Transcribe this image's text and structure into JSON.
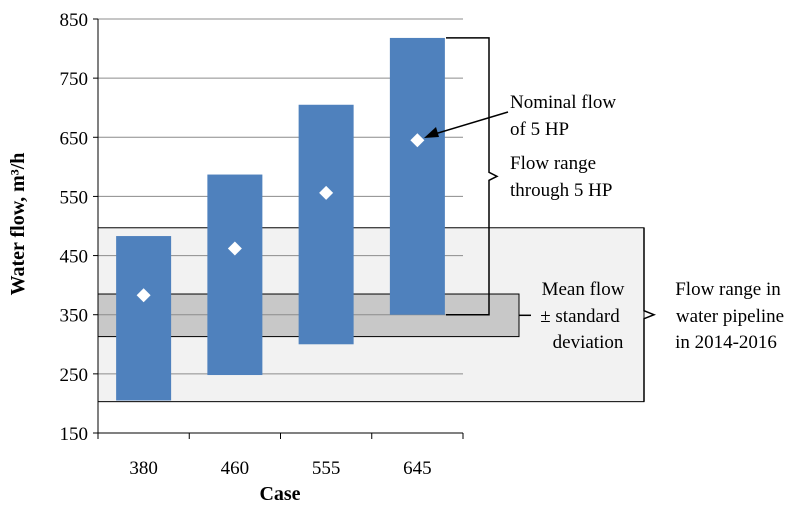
{
  "chart_data": {
    "type": "bar",
    "subtype": "floating-range",
    "categories": [
      "380",
      "460",
      "555",
      "645"
    ],
    "ranges": [
      {
        "low": 205,
        "high": 483
      },
      {
        "low": 248,
        "high": 587
      },
      {
        "low": 300,
        "high": 705
      },
      {
        "low": 350,
        "high": 818
      }
    ],
    "nominal": [
      383,
      462,
      556,
      645
    ],
    "xlabel": "Case",
    "ylabel": "Water flow, m³/h",
    "ylim": [
      150,
      850
    ],
    "yticks": [
      "150",
      "250",
      "350",
      "450",
      "550",
      "650",
      "750",
      "850"
    ],
    "grid": "horizontal",
    "colors": {
      "bar": "#4f81bd",
      "marker": "#ffffff"
    },
    "bands": [
      {
        "name": "pipeline",
        "low": 203,
        "high": 497,
        "color": "#f2f2f2"
      },
      {
        "name": "mean",
        "low": 313,
        "high": 385,
        "color": "#c8c8c8"
      }
    ],
    "annotations": {
      "nominal_line1": "Nominal flow",
      "nominal_line2": "of 5 HP",
      "range5hp_line1": "Flow range",
      "range5hp_line2": "through 5 HP",
      "mean_line1": "Mean flow",
      "mean_line2": "±  standard",
      "mean_line3": "deviation",
      "pipe_line1": "Flow range in",
      "pipe_line2": "water pipeline",
      "pipe_line3": "in 2014-2016"
    }
  }
}
